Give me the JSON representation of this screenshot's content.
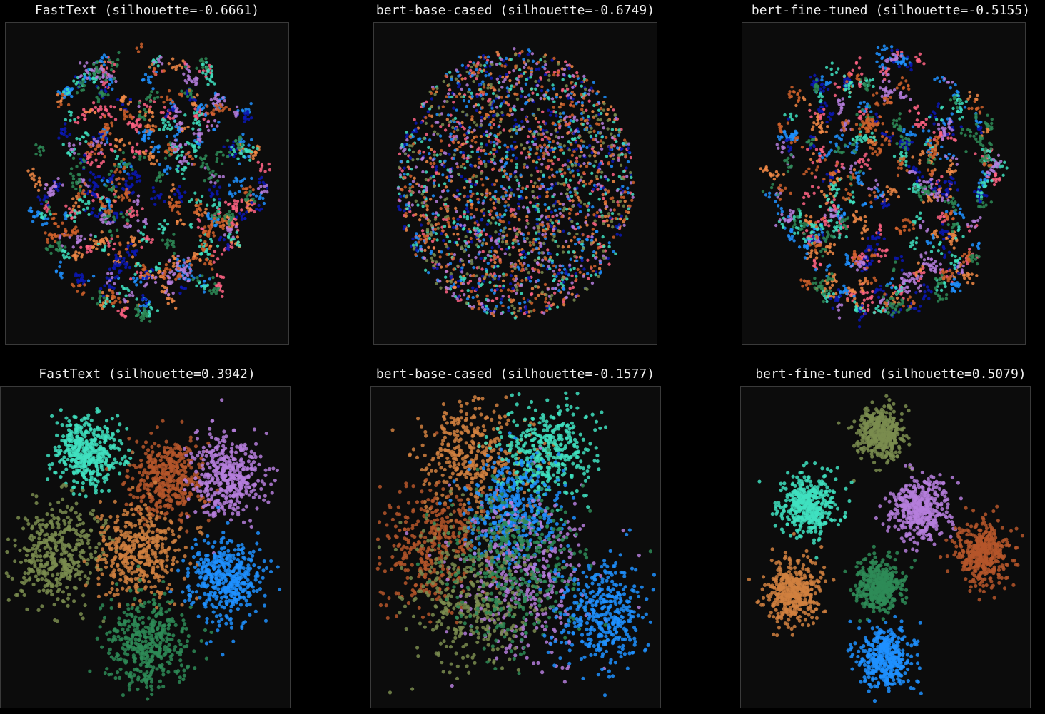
{
  "chart_data": [
    {
      "type": "scatter",
      "title": "FastText (silhouette=-0.6661)",
      "model": "FastText",
      "silhouette": -0.6661,
      "clusters": [
        {
          "color": "#ff6384",
          "x": 0.4,
          "y": 0.55,
          "spread": 0.28
        },
        {
          "color": "#f28a46",
          "x": 0.55,
          "y": 0.62,
          "spread": 0.3
        },
        {
          "color": "#1e90ff",
          "x": 0.6,
          "y": 0.45,
          "spread": 0.28
        },
        {
          "color": "#0a17b5",
          "x": 0.45,
          "y": 0.5,
          "spread": 0.26
        },
        {
          "color": "#40e0c0",
          "x": 0.5,
          "y": 0.4,
          "spread": 0.3
        },
        {
          "color": "#b57edc",
          "x": 0.42,
          "y": 0.35,
          "spread": 0.3
        },
        {
          "color": "#2e8b57",
          "x": 0.6,
          "y": 0.55,
          "spread": 0.3
        },
        {
          "color": "#d0622c",
          "x": 0.5,
          "y": 0.6,
          "spread": 0.3
        }
      ],
      "point_style": "tight-subclusters"
    },
    {
      "type": "scatter",
      "title": "bert-base-cased (silhouette=-0.6749)",
      "model": "bert-base-cased",
      "silhouette": -0.6749,
      "clusters": [
        {
          "color": "#ff6384",
          "x": 0.45,
          "y": 0.55,
          "spread": 0.32
        },
        {
          "color": "#f28a46",
          "x": 0.55,
          "y": 0.45,
          "spread": 0.33
        },
        {
          "color": "#1e90ff",
          "x": 0.5,
          "y": 0.55,
          "spread": 0.32
        },
        {
          "color": "#0a17b5",
          "x": 0.48,
          "y": 0.52,
          "spread": 0.3
        },
        {
          "color": "#40e0c0",
          "x": 0.52,
          "y": 0.48,
          "spread": 0.32
        },
        {
          "color": "#b57edc",
          "x": 0.5,
          "y": 0.5,
          "spread": 0.33
        },
        {
          "color": "#7a8c4f",
          "x": 0.48,
          "y": 0.48,
          "spread": 0.33
        },
        {
          "color": "#d0622c",
          "x": 0.52,
          "y": 0.52,
          "spread": 0.32
        }
      ],
      "point_style": "uniform-mixed"
    },
    {
      "type": "scatter",
      "title": "bert-fine-tuned (silhouette=-0.5155)",
      "model": "bert-fine-tuned",
      "silhouette": -0.5155,
      "clusters": [
        {
          "color": "#ff6384",
          "x": 0.45,
          "y": 0.52,
          "spread": 0.28
        },
        {
          "color": "#f28a46",
          "x": 0.55,
          "y": 0.62,
          "spread": 0.28
        },
        {
          "color": "#1e90ff",
          "x": 0.42,
          "y": 0.45,
          "spread": 0.3
        },
        {
          "color": "#0a17b5",
          "x": 0.4,
          "y": 0.5,
          "spread": 0.24
        },
        {
          "color": "#40e0c0",
          "x": 0.55,
          "y": 0.38,
          "spread": 0.28
        },
        {
          "color": "#b57edc",
          "x": 0.58,
          "y": 0.55,
          "spread": 0.28
        },
        {
          "color": "#2e8b57",
          "x": 0.5,
          "y": 0.55,
          "spread": 0.28
        },
        {
          "color": "#d0622c",
          "x": 0.52,
          "y": 0.42,
          "spread": 0.28
        }
      ],
      "point_style": "tight-subclusters"
    },
    {
      "type": "scatter",
      "title": "FastText (silhouette=0.3942)",
      "model": "FastText",
      "silhouette": 0.3942,
      "clusters": [
        {
          "color": "#40e0c0",
          "x": 0.3,
          "y": 0.2,
          "spread": 0.07
        },
        {
          "color": "#b5562a",
          "x": 0.57,
          "y": 0.28,
          "spread": 0.08
        },
        {
          "color": "#b57edc",
          "x": 0.78,
          "y": 0.28,
          "spread": 0.08
        },
        {
          "color": "#7a8c4f",
          "x": 0.2,
          "y": 0.52,
          "spread": 0.1
        },
        {
          "color": "#d0803f",
          "x": 0.48,
          "y": 0.52,
          "spread": 0.09
        },
        {
          "color": "#1e90ff",
          "x": 0.78,
          "y": 0.6,
          "spread": 0.08
        },
        {
          "color": "#2e8b57",
          "x": 0.5,
          "y": 0.8,
          "spread": 0.09
        }
      ],
      "point_style": "separated-blobs"
    },
    {
      "type": "scatter",
      "title": "bert-base-cased (silhouette=-0.1577)",
      "model": "bert-base-cased",
      "silhouette": -0.1577,
      "clusters": [
        {
          "color": "#d0803f",
          "x": 0.35,
          "y": 0.22,
          "spread": 0.12
        },
        {
          "color": "#40e0c0",
          "x": 0.6,
          "y": 0.2,
          "spread": 0.1
        },
        {
          "color": "#b5562a",
          "x": 0.22,
          "y": 0.5,
          "spread": 0.12
        },
        {
          "color": "#1e90ff",
          "x": 0.48,
          "y": 0.38,
          "spread": 0.1
        },
        {
          "color": "#b57edc",
          "x": 0.55,
          "y": 0.6,
          "spread": 0.15
        },
        {
          "color": "#7a8c4f",
          "x": 0.35,
          "y": 0.65,
          "spread": 0.14
        },
        {
          "color": "#2e8b57",
          "x": 0.5,
          "y": 0.55,
          "spread": 0.16
        },
        {
          "color": "#1e90ff",
          "x": 0.8,
          "y": 0.72,
          "spread": 0.1
        }
      ],
      "point_style": "overlapping-blobs"
    },
    {
      "type": "scatter",
      "title": "bert-fine-tuned (silhouette=0.5079)",
      "model": "bert-fine-tuned",
      "silhouette": 0.5079,
      "clusters": [
        {
          "color": "#7a8c4f",
          "x": 0.48,
          "y": 0.15,
          "spread": 0.05
        },
        {
          "color": "#40e0c0",
          "x": 0.23,
          "y": 0.37,
          "spread": 0.06
        },
        {
          "color": "#b57edc",
          "x": 0.62,
          "y": 0.38,
          "spread": 0.06
        },
        {
          "color": "#b5562a",
          "x": 0.84,
          "y": 0.52,
          "spread": 0.06
        },
        {
          "color": "#d0803f",
          "x": 0.18,
          "y": 0.64,
          "spread": 0.06
        },
        {
          "color": "#2e8b57",
          "x": 0.48,
          "y": 0.62,
          "spread": 0.05
        },
        {
          "color": "#1e90ff",
          "x": 0.5,
          "y": 0.85,
          "spread": 0.06
        }
      ],
      "point_style": "separated-blobs"
    }
  ]
}
